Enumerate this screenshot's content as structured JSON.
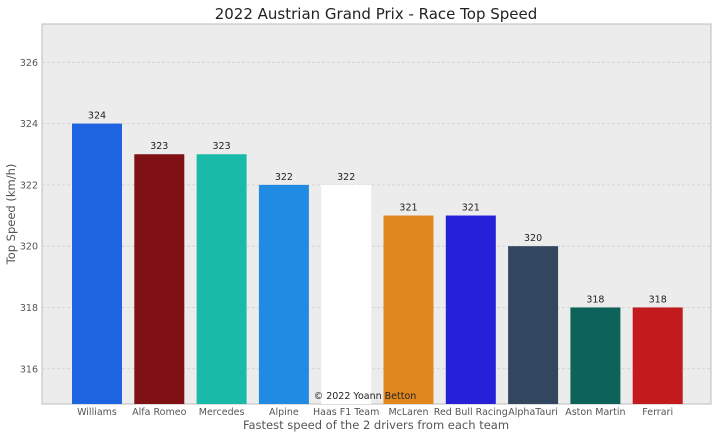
{
  "chart_data": {
    "type": "bar",
    "title": "2022 Austrian Grand Prix - Race Top Speed",
    "xlabel": "Fastest speed of the 2 drivers from each team",
    "ylabel": "Top Speed (km/h)",
    "categories": [
      "Williams",
      "Alfa Romeo",
      "Mercedes",
      "Alpine",
      "Haas F1 Team",
      "McLaren",
      "Red Bull Racing",
      "AlphaTauri",
      "Aston Martin",
      "Ferrari"
    ],
    "values": [
      324,
      323,
      323,
      322,
      322,
      321,
      321,
      320,
      318,
      318
    ],
    "data_labels": [
      "324",
      "323",
      "323",
      "322",
      "322",
      "321",
      "321",
      "320",
      "318",
      "318"
    ],
    "colors": [
      "#1e63e0",
      "#7f1013",
      "#1abaa9",
      "#218ae2",
      "#ffffff",
      "#e0871e",
      "#2720d9",
      "#334660",
      "#0d6359",
      "#c21a1d"
    ],
    "yticks": [
      316,
      318,
      320,
      322,
      324,
      326
    ],
    "ytick_labels": [
      "316",
      "318",
      "320",
      "322",
      "324",
      "326"
    ],
    "ylim": [
      314.85,
      327.25
    ],
    "grid": true,
    "background": "#ececec",
    "annotation": "© 2022 Yoann Betton"
  }
}
